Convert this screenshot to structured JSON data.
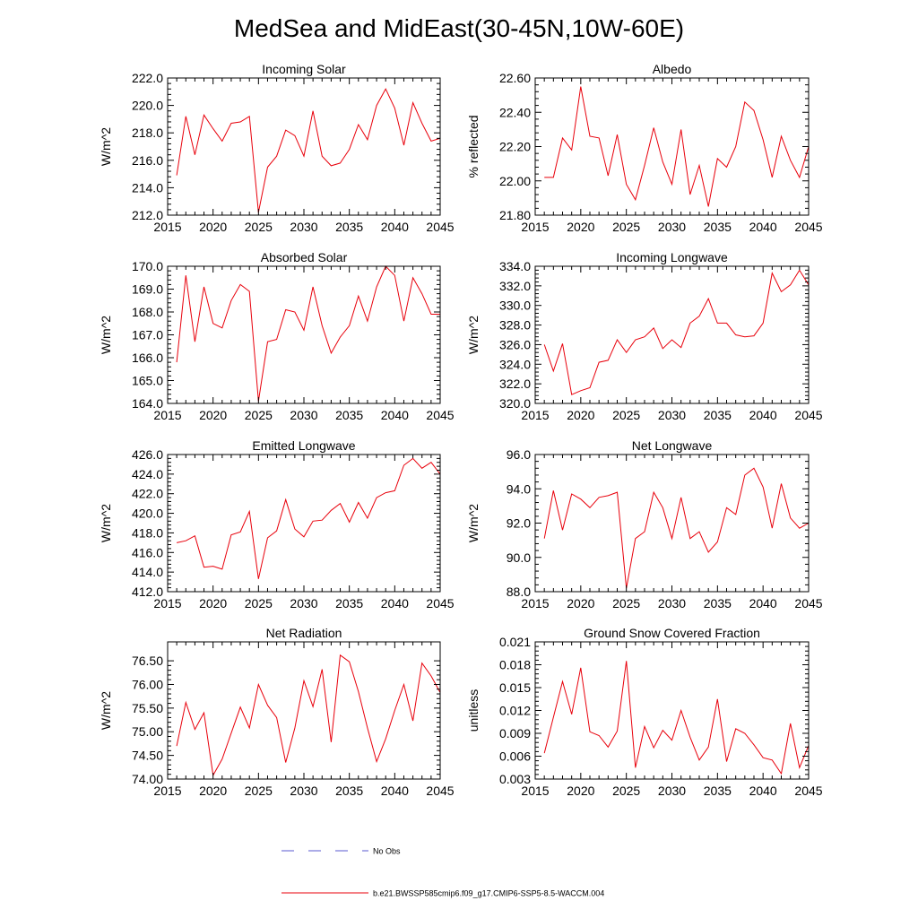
{
  "figure": {
    "title": "MedSea and MidEast(30-45N,10W-60E)"
  },
  "legend": {
    "obs_label": "No Obs",
    "obs_color": "#5a5ad2",
    "model_label": "b.e21.BWSSP585cmip6.f09_g17.CMIP6-SSP5-8.5-WACCM.004",
    "model_color": "#e8000b"
  },
  "chart_data": [
    {
      "id": "incoming-solar",
      "type": "line",
      "title": "Incoming Solar",
      "ylabel": "W/m^2",
      "xlabel": "",
      "xlim": [
        2015,
        2045
      ],
      "xticks": [
        2015,
        2020,
        2025,
        2030,
        2035,
        2040,
        2045
      ],
      "ylim": [
        212.0,
        222.0
      ],
      "yticks": [
        "212.0",
        "214.0",
        "216.0",
        "218.0",
        "220.0",
        "222.0"
      ],
      "x": [
        2016,
        2017,
        2018,
        2019,
        2020,
        2021,
        2022,
        2023,
        2024,
        2025,
        2026,
        2027,
        2028,
        2029,
        2030,
        2031,
        2032,
        2033,
        2034,
        2035,
        2036,
        2037,
        2038,
        2039,
        2040,
        2041,
        2042,
        2043,
        2044,
        2045
      ],
      "values": [
        214.9,
        219.2,
        216.4,
        219.3,
        218.3,
        217.4,
        218.7,
        218.8,
        219.2,
        212.2,
        215.5,
        216.3,
        218.2,
        217.8,
        216.3,
        219.6,
        216.3,
        215.6,
        215.8,
        216.8,
        218.6,
        217.5,
        220.0,
        221.2,
        219.8,
        217.1,
        220.2,
        218.7,
        217.4,
        217.6
      ],
      "series_name": "b.e21.BWSSP585cmip6.f09_g17.CMIP6-SSP5-8.5-WACCM.004"
    },
    {
      "id": "albedo",
      "type": "line",
      "title": "Albedo",
      "ylabel": "% reflected",
      "xlabel": "",
      "xlim": [
        2015,
        2045
      ],
      "xticks": [
        2015,
        2020,
        2025,
        2030,
        2035,
        2040,
        2045
      ],
      "ylim": [
        21.8,
        22.6
      ],
      "yticks": [
        "21.80",
        "22.00",
        "22.20",
        "22.40",
        "22.60"
      ],
      "x": [
        2016,
        2017,
        2018,
        2019,
        2020,
        2021,
        2022,
        2023,
        2024,
        2025,
        2026,
        2027,
        2028,
        2029,
        2030,
        2031,
        2032,
        2033,
        2034,
        2035,
        2036,
        2037,
        2038,
        2039,
        2040,
        2041,
        2042,
        2043,
        2044,
        2045
      ],
      "values": [
        22.02,
        22.02,
        22.25,
        22.18,
        22.55,
        22.26,
        22.25,
        22.03,
        22.27,
        21.98,
        21.89,
        22.09,
        22.31,
        22.11,
        21.98,
        22.3,
        21.92,
        22.09,
        21.85,
        22.13,
        22.08,
        22.2,
        22.46,
        22.41,
        22.24,
        22.02,
        22.26,
        22.12,
        22.02,
        22.2
      ],
      "series_name": "b.e21.BWSSP585cmip6.f09_g17.CMIP6-SSP5-8.5-WACCM.004"
    },
    {
      "id": "absorbed-solar",
      "type": "line",
      "title": "Absorbed Solar",
      "ylabel": "W/m^2",
      "xlabel": "",
      "xlim": [
        2015,
        2045
      ],
      "xticks": [
        2015,
        2020,
        2025,
        2030,
        2035,
        2040,
        2045
      ],
      "ylim": [
        164.0,
        170.0
      ],
      "yticks": [
        "164.0",
        "165.0",
        "166.0",
        "167.0",
        "168.0",
        "169.0",
        "170.0"
      ],
      "x": [
        2016,
        2017,
        2018,
        2019,
        2020,
        2021,
        2022,
        2023,
        2024,
        2025,
        2026,
        2027,
        2028,
        2029,
        2030,
        2031,
        2032,
        2033,
        2034,
        2035,
        2036,
        2037,
        2038,
        2039,
        2040,
        2041,
        2042,
        2043,
        2044,
        2045
      ],
      "values": [
        165.8,
        169.6,
        166.7,
        169.1,
        167.5,
        167.3,
        168.5,
        169.2,
        168.9,
        164.1,
        166.7,
        166.8,
        168.1,
        168.0,
        167.2,
        169.1,
        167.4,
        166.2,
        166.9,
        167.4,
        168.7,
        167.6,
        169.1,
        170.0,
        169.6,
        167.6,
        169.5,
        168.8,
        167.9,
        167.9
      ],
      "series_name": "b.e21.BWSSP585cmip6.f09_g17.CMIP6-SSP5-8.5-WACCM.004"
    },
    {
      "id": "incoming-longwave",
      "type": "line",
      "title": "Incoming Longwave",
      "ylabel": "W/m^2",
      "xlabel": "",
      "xlim": [
        2015,
        2045
      ],
      "xticks": [
        2015,
        2020,
        2025,
        2030,
        2035,
        2040,
        2045
      ],
      "ylim": [
        320.0,
        334.0
      ],
      "yticks": [
        "320.0",
        "322.0",
        "324.0",
        "326.0",
        "328.0",
        "330.0",
        "332.0",
        "334.0"
      ],
      "x": [
        2016,
        2017,
        2018,
        2019,
        2020,
        2021,
        2022,
        2023,
        2024,
        2025,
        2026,
        2027,
        2028,
        2029,
        2030,
        2031,
        2032,
        2033,
        2034,
        2035,
        2036,
        2037,
        2038,
        2039,
        2040,
        2041,
        2042,
        2043,
        2044,
        2045
      ],
      "values": [
        326.0,
        323.3,
        326.1,
        320.9,
        321.3,
        321.6,
        324.2,
        324.4,
        326.5,
        325.2,
        326.5,
        326.8,
        327.7,
        325.6,
        326.5,
        325.7,
        328.2,
        328.9,
        330.7,
        328.2,
        328.2,
        327.0,
        326.8,
        326.9,
        328.2,
        333.3,
        331.4,
        332.1,
        333.6,
        332.1
      ],
      "series_name": "b.e21.BWSSP585cmip6.f09_g17.CMIP6-SSP5-8.5-WACCM.004"
    },
    {
      "id": "emitted-longwave",
      "type": "line",
      "title": "Emitted Longwave",
      "ylabel": "W/m^2",
      "xlabel": "",
      "xlim": [
        2015,
        2045
      ],
      "xticks": [
        2015,
        2020,
        2025,
        2030,
        2035,
        2040,
        2045
      ],
      "ylim": [
        412.0,
        426.0
      ],
      "yticks": [
        "412.0",
        "414.0",
        "416.0",
        "418.0",
        "420.0",
        "422.0",
        "424.0",
        "426.0"
      ],
      "x": [
        2016,
        2017,
        2018,
        2019,
        2020,
        2021,
        2022,
        2023,
        2024,
        2025,
        2026,
        2027,
        2028,
        2029,
        2030,
        2031,
        2032,
        2033,
        2034,
        2035,
        2036,
        2037,
        2038,
        2039,
        2040,
        2041,
        2042,
        2043,
        2044,
        2045
      ],
      "values": [
        417.0,
        417.2,
        417.7,
        414.5,
        414.6,
        414.3,
        417.8,
        418.1,
        420.2,
        413.3,
        417.5,
        418.2,
        421.4,
        418.4,
        417.6,
        419.2,
        419.3,
        420.3,
        421.0,
        419.1,
        421.1,
        419.5,
        421.6,
        422.1,
        422.3,
        424.9,
        425.6,
        424.6,
        425.2,
        424.0
      ],
      "series_name": "b.e21.BWSSP585cmip6.f09_g17.CMIP6-SSP5-8.5-WACCM.004"
    },
    {
      "id": "net-longwave",
      "type": "line",
      "title": "Net Longwave",
      "ylabel": "W/m^2",
      "xlabel": "",
      "xlim": [
        2015,
        2045
      ],
      "xticks": [
        2015,
        2020,
        2025,
        2030,
        2035,
        2040,
        2045
      ],
      "ylim": [
        88.0,
        96.0
      ],
      "yticks": [
        "88.0",
        "90.0",
        "92.0",
        "94.0",
        "96.0"
      ],
      "x": [
        2016,
        2017,
        2018,
        2019,
        2020,
        2021,
        2022,
        2023,
        2024,
        2025,
        2026,
        2027,
        2028,
        2029,
        2030,
        2031,
        2032,
        2033,
        2034,
        2035,
        2036,
        2037,
        2038,
        2039,
        2040,
        2041,
        2042,
        2043,
        2044,
        2045
      ],
      "values": [
        91.1,
        93.9,
        91.6,
        93.7,
        93.4,
        92.9,
        93.5,
        93.6,
        93.8,
        88.2,
        91.1,
        91.5,
        93.8,
        92.9,
        91.1,
        93.5,
        91.1,
        91.5,
        90.3,
        90.9,
        92.9,
        92.5,
        94.8,
        95.2,
        94.1,
        91.7,
        94.3,
        92.3,
        91.7,
        92.0
      ],
      "series_name": "b.e21.BWSSP585cmip6.f09_g17.CMIP6-SSP5-8.5-WACCM.004"
    },
    {
      "id": "net-radiation",
      "type": "line",
      "title": "Net Radiation",
      "ylabel": "W/m^2",
      "xlabel": "",
      "xlim": [
        2015,
        2045
      ],
      "xticks": [
        2015,
        2020,
        2025,
        2030,
        2035,
        2040,
        2045
      ],
      "ylim": [
        74.0,
        76.9
      ],
      "yticks": [
        "74.00",
        "74.50",
        "75.00",
        "75.50",
        "76.00",
        "76.50"
      ],
      "ytick_values": [
        74.0,
        74.5,
        75.0,
        75.5,
        76.0,
        76.5
      ],
      "x": [
        2016,
        2017,
        2018,
        2019,
        2020,
        2021,
        2022,
        2023,
        2024,
        2025,
        2026,
        2027,
        2028,
        2029,
        2030,
        2031,
        2032,
        2033,
        2034,
        2035,
        2036,
        2037,
        2038,
        2039,
        2040,
        2041,
        2042,
        2043,
        2044,
        2045
      ],
      "values": [
        74.7,
        75.62,
        75.05,
        75.4,
        74.08,
        74.42,
        74.97,
        75.52,
        75.08,
        76.0,
        75.56,
        75.3,
        74.35,
        75.08,
        76.08,
        75.53,
        76.32,
        74.78,
        76.62,
        76.48,
        75.85,
        75.08,
        74.37,
        74.85,
        75.45,
        76.0,
        75.23,
        76.45,
        76.18,
        75.83
      ],
      "series_name": "b.e21.BWSSP585cmip6.f09_g17.CMIP6-SSP5-8.5-WACCM.004"
    },
    {
      "id": "ground-snow",
      "type": "line",
      "title": "Ground Snow Covered Fraction",
      "ylabel": "unitless",
      "xlabel": "",
      "xlim": [
        2015,
        2045
      ],
      "xticks": [
        2015,
        2020,
        2025,
        2030,
        2035,
        2040,
        2045
      ],
      "ylim": [
        0.003,
        0.021
      ],
      "yticks": [
        "0.003",
        "0.006",
        "0.009",
        "0.012",
        "0.015",
        "0.018",
        "0.021"
      ],
      "x": [
        2016,
        2017,
        2018,
        2019,
        2020,
        2021,
        2022,
        2023,
        2024,
        2025,
        2026,
        2027,
        2028,
        2029,
        2030,
        2031,
        2032,
        2033,
        2034,
        2035,
        2036,
        2037,
        2038,
        2039,
        2040,
        2041,
        2042,
        2043,
        2044,
        2045
      ],
      "values": [
        0.0064,
        0.0111,
        0.0158,
        0.0115,
        0.0176,
        0.0092,
        0.0087,
        0.0072,
        0.0093,
        0.0185,
        0.0045,
        0.0099,
        0.0071,
        0.0094,
        0.0081,
        0.012,
        0.0085,
        0.0055,
        0.0072,
        0.0135,
        0.0053,
        0.0096,
        0.009,
        0.0075,
        0.0058,
        0.0055,
        0.0037,
        0.0103,
        0.0045,
        0.0074
      ],
      "series_name": "b.e21.BWSSP585cmip6.f09_g17.CMIP6-SSP5-8.5-WACCM.004"
    }
  ]
}
